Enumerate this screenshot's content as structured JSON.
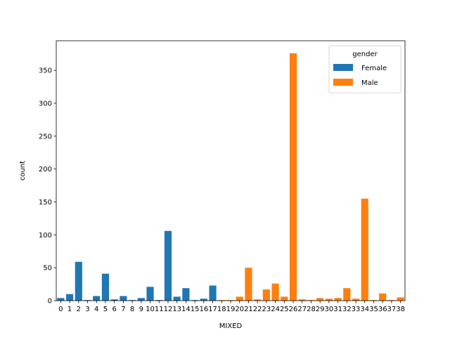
{
  "chart_data": {
    "type": "bar",
    "xlabel": "MIXED",
    "ylabel": "count",
    "ylim": [
      0,
      395
    ],
    "yticks": [
      0,
      50,
      100,
      150,
      200,
      250,
      300,
      350
    ],
    "categories": [
      "0",
      "1",
      "2",
      "3",
      "4",
      "5",
      "6",
      "7",
      "8",
      "9",
      "10",
      "11",
      "12",
      "13",
      "14",
      "15",
      "16",
      "17",
      "18",
      "19",
      "20",
      "21",
      "22",
      "23",
      "24",
      "25",
      "26",
      "27",
      "28",
      "29",
      "30",
      "31",
      "32",
      "33",
      "34",
      "35",
      "36",
      "37",
      "38"
    ],
    "series": [
      {
        "name": "Female",
        "color": "#1f77b4",
        "values": [
          4,
          10,
          59,
          1,
          7,
          41,
          2,
          7,
          1,
          4,
          21,
          1,
          106,
          6,
          19,
          1,
          3,
          23,
          null,
          null,
          null,
          null,
          null,
          null,
          null,
          null,
          null,
          null,
          null,
          null,
          null,
          null,
          null,
          null,
          null,
          null,
          null,
          null,
          null
        ]
      },
      {
        "name": "Male",
        "color": "#ff7f0e",
        "values": [
          null,
          null,
          null,
          null,
          null,
          null,
          null,
          null,
          null,
          null,
          null,
          null,
          null,
          null,
          null,
          null,
          null,
          null,
          1,
          1,
          6,
          50,
          2,
          17,
          26,
          6,
          376,
          2,
          1,
          4,
          3,
          4,
          19,
          3,
          155,
          1,
          11,
          1,
          5
        ]
      }
    ],
    "legend": {
      "title": "gender",
      "position": "top-right"
    },
    "grid": false
  }
}
